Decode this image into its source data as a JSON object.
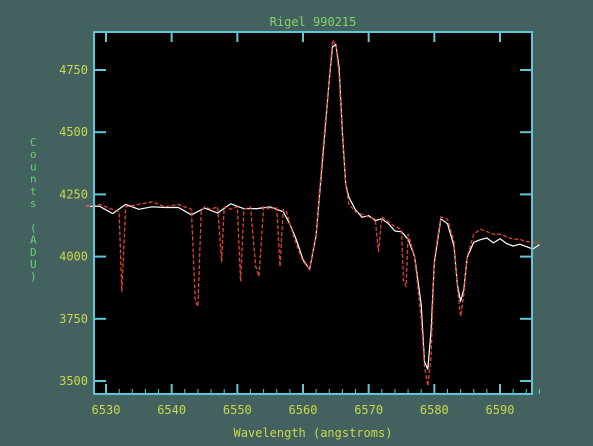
{
  "chart_data": {
    "type": "line",
    "title": "Rigel 990215",
    "xlabel": "Wavelength (angstroms)",
    "ylabel": "Counts (ADU)",
    "xlim": [
      6526,
      6597
    ],
    "ylim": [
      3470,
      4870
    ],
    "x_ticks": [
      6530,
      6540,
      6550,
      6560,
      6570,
      6580,
      6590
    ],
    "y_ticks": [
      3500,
      3750,
      4000,
      4250,
      4500,
      4750
    ],
    "grid": false,
    "legend": "none",
    "colors": {
      "background": "#43615f",
      "plot_area": "#000000",
      "frame": "#5fc8d8",
      "text": "#c8d84a",
      "title": "#7fd46a",
      "ylabel": "#5fd46a"
    },
    "series": [
      {
        "style": "solid",
        "color": "#ffffff",
        "x": [
          6527,
          6529,
          6531,
          6533,
          6535,
          6537,
          6539,
          6541,
          6543,
          6545,
          6547,
          6549,
          6551,
          6553,
          6555,
          6557,
          6558,
          6559,
          6560,
          6561,
          6562,
          6563,
          6564,
          6564.5,
          6565,
          6565.5,
          6566,
          6566.5,
          6567,
          6568,
          6569,
          6570,
          6571,
          6572,
          6573,
          6574,
          6575,
          6576,
          6577,
          6578,
          6578.5,
          6579,
          6579.5,
          6580,
          6581,
          6582,
          6583,
          6583.5,
          6584,
          6584.5,
          6585,
          6586,
          6587,
          6588,
          6589,
          6590,
          6591,
          6592,
          6593,
          6594,
          6595,
          6596
        ],
        "y": [
          4190,
          4200,
          4180,
          4200,
          4190,
          4210,
          4190,
          4200,
          4180,
          4190,
          4180,
          4200,
          4190,
          4200,
          4190,
          4180,
          4140,
          4060,
          3990,
          3960,
          4080,
          4400,
          4700,
          4840,
          4860,
          4750,
          4500,
          4300,
          4230,
          4190,
          4170,
          4160,
          4150,
          4140,
          4130,
          4110,
          4090,
          4070,
          4010,
          3800,
          3580,
          3560,
          3700,
          3980,
          4140,
          4130,
          4050,
          3880,
          3820,
          3880,
          3990,
          4060,
          4080,
          4070,
          4060,
          4060,
          4050,
          4050,
          4040,
          4040,
          4040,
          4040
        ]
      },
      {
        "style": "dashed",
        "color": "#e0442c",
        "x": [
          6527,
          6529,
          6531,
          6532,
          6532.4,
          6533,
          6535,
          6537,
          6539,
          6541,
          6543,
          6543.6,
          6544,
          6544.5,
          6545,
          6546,
          6547,
          6547.6,
          6548,
          6549,
          6550,
          6550.5,
          6551,
          6552,
          6552.8,
          6553.3,
          6554,
          6555,
          6556,
          6556.5,
          6557,
          6557.5,
          6558,
          6559,
          6560,
          6561,
          6562,
          6563,
          6564,
          6564.5,
          6565,
          6565.5,
          6566,
          6566.5,
          6567,
          6568,
          6569,
          6570,
          6571,
          6571.5,
          6572,
          6573,
          6574,
          6575,
          6575.3,
          6575.7,
          6576,
          6577,
          6578,
          6578.5,
          6579,
          6579.5,
          6580,
          6581,
          6582,
          6583,
          6583.5,
          6584,
          6584.5,
          6585,
          6586,
          6587,
          6588,
          6589,
          6590,
          6591,
          6592,
          6593,
          6594,
          6595,
          6596
        ],
        "y": [
          4200,
          4210,
          4190,
          4180,
          3860,
          4200,
          4210,
          4220,
          4200,
          4210,
          4190,
          3820,
          3800,
          4180,
          4200,
          4190,
          4200,
          3980,
          4200,
          4190,
          4200,
          3900,
          4190,
          4200,
          3960,
          3920,
          4200,
          4190,
          4200,
          3960,
          4190,
          4180,
          4130,
          4050,
          3980,
          3950,
          4090,
          4420,
          4720,
          4870,
          4850,
          4730,
          4480,
          4290,
          4210,
          4180,
          4170,
          4160,
          4150,
          4020,
          4160,
          4140,
          4120,
          4110,
          3900,
          3880,
          4090,
          4000,
          3750,
          3560,
          3480,
          3600,
          3990,
          4160,
          4150,
          4060,
          3880,
          3760,
          3850,
          4000,
          4090,
          4110,
          4100,
          4090,
          4090,
          4080,
          4070,
          4070,
          4060,
          4060,
          4050
        ]
      }
    ]
  }
}
